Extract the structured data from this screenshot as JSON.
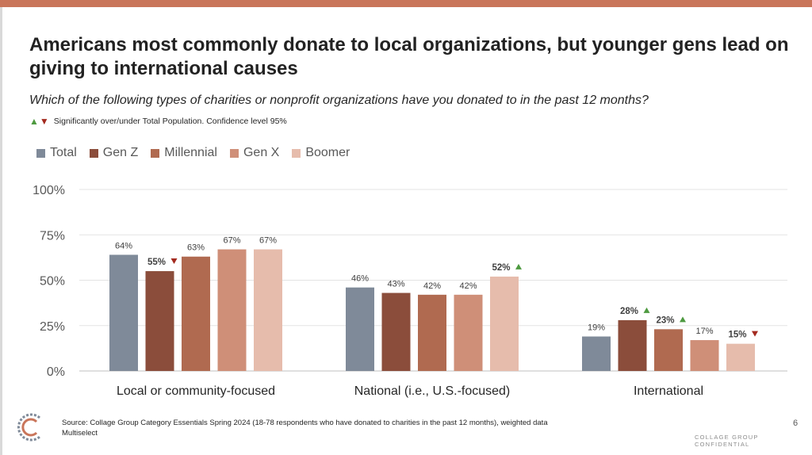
{
  "header": {
    "title": "Americans most commonly donate to local organizations, but younger gens lead on giving to international causes",
    "subtitle": "Which of the following types of charities or nonprofit organizations have you donated to in the past 12 months?",
    "significance_note": "Significantly over/under Total Population. Confidence level 95%"
  },
  "colors": {
    "accent_bar": "#c9755a",
    "sig_up": "#4e9a40",
    "sig_down": "#a32a1f"
  },
  "chart_data": {
    "type": "bar",
    "categories": [
      "Local or community-focused",
      "National (i.e., U.S.-focused)",
      "International"
    ],
    "series": [
      {
        "name": "Total",
        "color": "#7f8a99",
        "values": [
          64,
          46,
          19
        ],
        "labels": [
          "64%",
          "46%",
          "19%"
        ],
        "sig": [
          "",
          "",
          ""
        ]
      },
      {
        "name": "Gen Z",
        "color": "#8b4d3b",
        "values": [
          55,
          43,
          28
        ],
        "labels": [
          "55%",
          "43%",
          "28%"
        ],
        "sig": [
          "down",
          "",
          "up"
        ]
      },
      {
        "name": "Millennial",
        "color": "#b06a50",
        "values": [
          63,
          42,
          23
        ],
        "labels": [
          "63%",
          "42%",
          "23%"
        ],
        "sig": [
          "",
          "",
          "up"
        ]
      },
      {
        "name": "Gen X",
        "color": "#cf8f78",
        "values": [
          67,
          42,
          17
        ],
        "labels": [
          "67%",
          "42%",
          "17%"
        ],
        "sig": [
          "",
          "",
          ""
        ]
      },
      {
        "name": "Boomer",
        "color": "#e6bcac",
        "values": [
          67,
          52,
          15
        ],
        "labels": [
          "67%",
          "52%",
          "15%"
        ],
        "sig": [
          "",
          "up",
          "down"
        ]
      }
    ],
    "ylim": [
      0,
      100
    ],
    "yticks": [
      0,
      25,
      50,
      75,
      100
    ],
    "ytick_labels": [
      "0%",
      "25%",
      "50%",
      "75%",
      "100%"
    ],
    "grid": true,
    "legend_position": "top-left"
  },
  "footer": {
    "source_line1": "Source: Collage Group Category Essentials Spring 2024 (18-78 respondents who have donated to charities in the past 12 months), weighted data",
    "source_line2": "Multiselect",
    "page_number": "6",
    "confidential": "COLLAGE GROUP CONFIDENTIAL"
  }
}
